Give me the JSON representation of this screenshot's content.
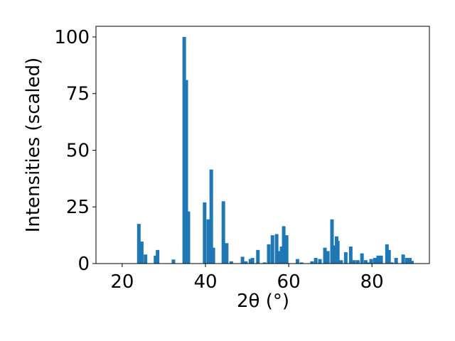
{
  "chart_data": {
    "type": "bar",
    "xlabel": "2θ (°)",
    "ylabel": "Intensities (scaled)",
    "color": "#1f77b4",
    "x": [
      24,
      24.7,
      25.6,
      28.0,
      28.5,
      32.3,
      34.9,
      35.4,
      35.9,
      39.8,
      40.7,
      41.4,
      41.9,
      44.3,
      45.1,
      46.2,
      48.9,
      49.7,
      50.8,
      51.3,
      52.6,
      54.2,
      55.2,
      56.1,
      57.1,
      57.8,
      58.3,
      58.8,
      59.5,
      62.1,
      63.1,
      65.6,
      66.5,
      67.5,
      68.7,
      69.4,
      70.4,
      70.9,
      71.5,
      71.8,
      72.6,
      73.7,
      74.9,
      75.7,
      76.6,
      77.6,
      78.5,
      79.1,
      79.8,
      80.7,
      81.5,
      82.2,
      83.6,
      84.1,
      84.8,
      85.8,
      87.5,
      88.4,
      89.1,
      89.6
    ],
    "values": [
      17.5,
      9.7,
      4,
      3.5,
      6,
      1.8,
      100,
      81,
      23,
      27,
      19.5,
      41.5,
      7,
      27.5,
      9,
      1,
      3,
      1,
      2,
      2.5,
      6,
      0.5,
      8.5,
      12.5,
      13,
      5.5,
      7.5,
      16.5,
      12.5,
      2,
      0.5,
      1,
      2.5,
      2,
      7,
      5.5,
      19.5,
      8,
      12,
      10,
      1.5,
      5,
      7.5,
      1.5,
      1.5,
      4.5,
      1.5,
      0.5,
      2,
      2.5,
      3.5,
      3.5,
      8.5,
      6,
      0.5,
      2.5,
      4,
      2.5,
      2.5,
      1.2
    ],
    "xlim": [
      13.7,
      93.8
    ],
    "xticks": [
      20,
      40,
      60,
      80
    ],
    "ylim": [
      0,
      104.7
    ],
    "yticks": [
      0,
      25,
      50,
      75,
      100
    ]
  }
}
